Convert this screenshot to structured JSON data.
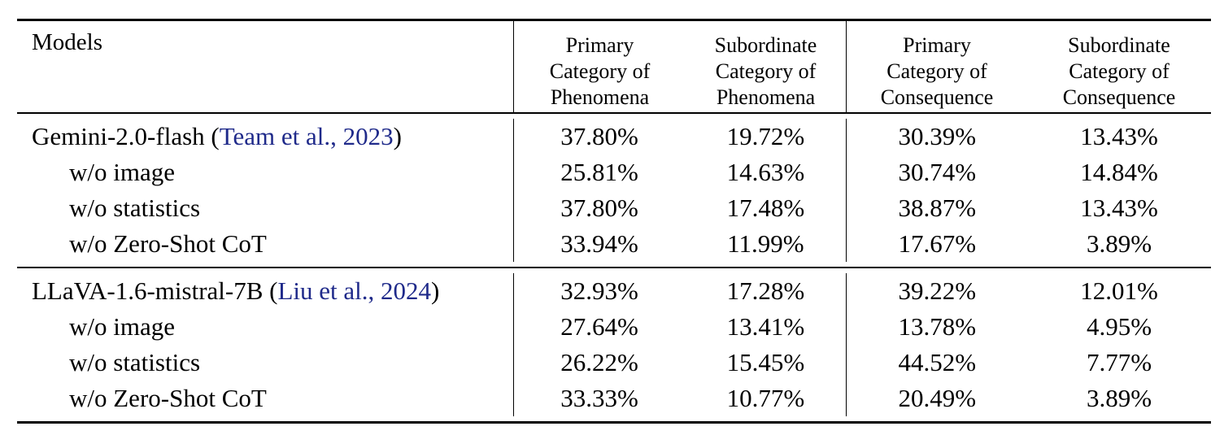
{
  "table": {
    "header": {
      "models_label": "Models",
      "columns": [
        [
          "Primary",
          "Category of",
          "Phenomena"
        ],
        [
          "Subordinate",
          "Category of",
          "Phenomena"
        ],
        [
          "Primary",
          "Category of",
          "Consequence"
        ],
        [
          "Subordinate",
          "Category of",
          "Consequence"
        ]
      ]
    },
    "groups": [
      {
        "rows": [
          {
            "model": "Gemini-2.0-flash (",
            "cite": "Team et al., 2023",
            "close": ")",
            "values": [
              "37.80%",
              "19.72%",
              "30.39%",
              "13.43%"
            ]
          },
          {
            "model": "w/o image",
            "values": [
              "25.81%",
              "14.63%",
              "30.74%",
              "14.84%"
            ]
          },
          {
            "model": "w/o statistics",
            "values": [
              "37.80%",
              "17.48%",
              "38.87%",
              "13.43%"
            ]
          },
          {
            "model": "w/o Zero-Shot CoT",
            "values": [
              "33.94%",
              "11.99%",
              "17.67%",
              "3.89%"
            ]
          }
        ]
      },
      {
        "rows": [
          {
            "model": "LLaVA-1.6-mistral-7B (",
            "cite": "Liu et al., 2024",
            "close": ")",
            "values": [
              "32.93%",
              "17.28%",
              "39.22%",
              "12.01%"
            ]
          },
          {
            "model": "w/o image",
            "values": [
              "27.64%",
              "13.41%",
              "13.78%",
              "4.95%"
            ]
          },
          {
            "model": "w/o statistics",
            "values": [
              "26.22%",
              "15.45%",
              "44.52%",
              "7.77%"
            ]
          },
          {
            "model": "w/o Zero-Shot CoT",
            "values": [
              "33.33%",
              "10.77%",
              "20.49%",
              "3.89%"
            ]
          }
        ]
      }
    ],
    "colors": {
      "citation": "#1f2a8a"
    }
  }
}
